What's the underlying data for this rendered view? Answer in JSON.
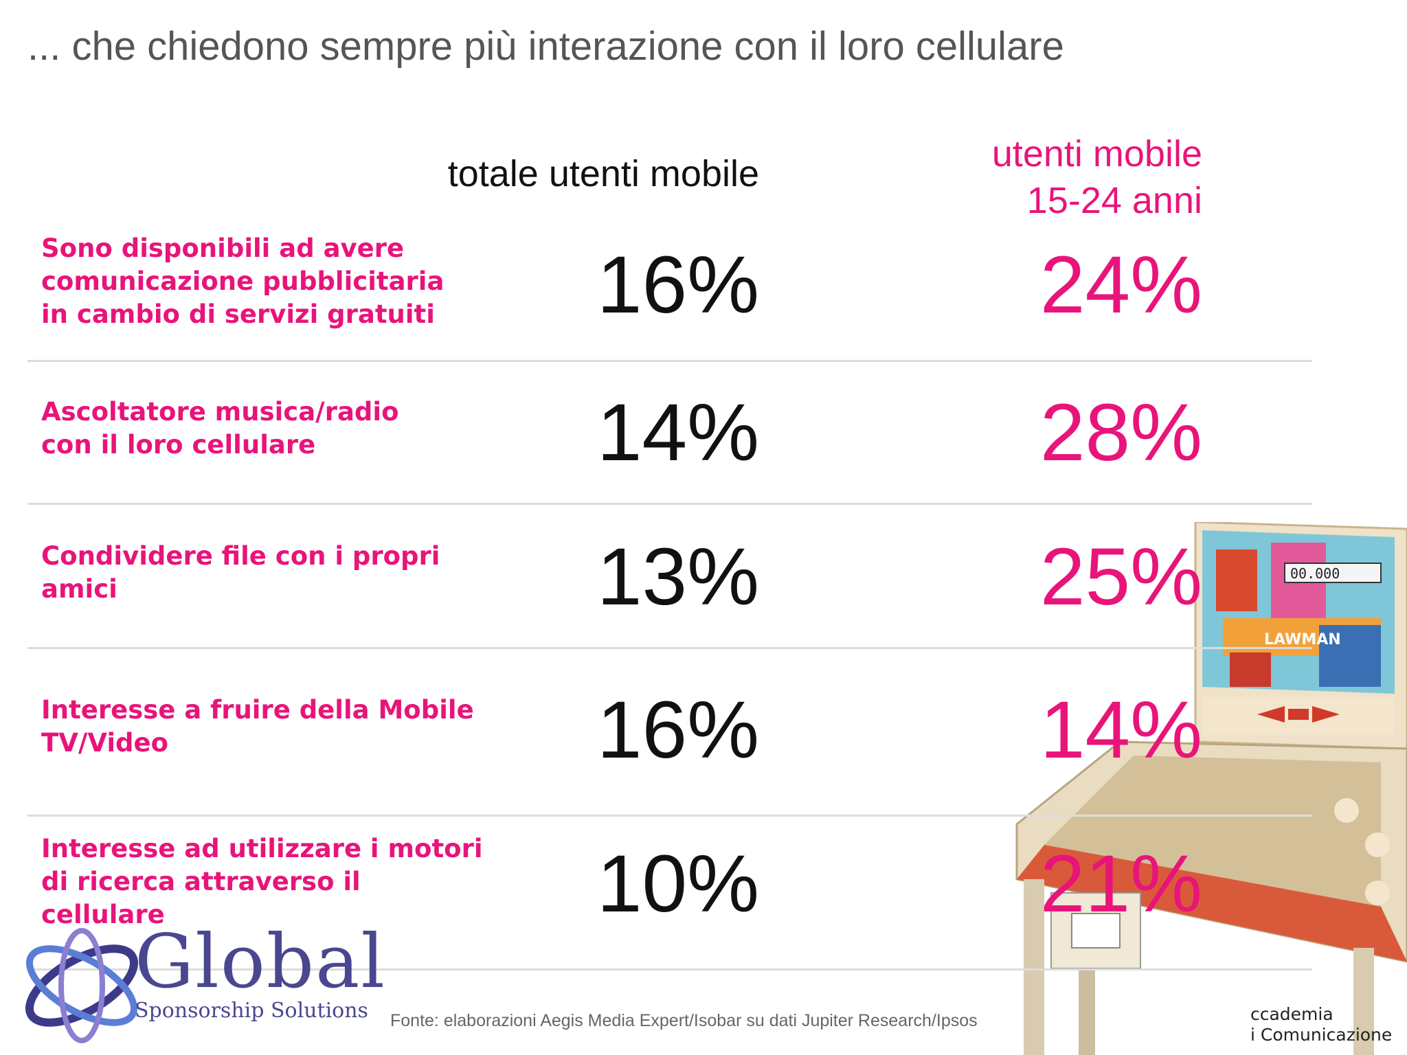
{
  "title": "... che chiedono sempre più interazione con il loro cellulare",
  "columns": {
    "total": "totale utenti mobile",
    "young": [
      "utenti mobile",
      "15-24 anni"
    ]
  },
  "rows": [
    {
      "label": [
        "Sono disponibili ad avere",
        "comunicazione pubblicitaria",
        "in cambio di servizi gratuiti"
      ],
      "total": "16%",
      "young": "24%"
    },
    {
      "label": [
        "Ascoltatore musica/radio",
        "con il loro cellulare"
      ],
      "total": "14%",
      "young": "28%"
    },
    {
      "label": [
        "Condividere file con i propri",
        "amici"
      ],
      "total": "13%",
      "young": "25%"
    },
    {
      "label": [
        "Interesse a fruire della Mobile",
        "TV/Video"
      ],
      "total": "16%",
      "young": "14%"
    },
    {
      "label": [
        "Interesse ad utilizzare i motori",
        "di ricerca attraverso il",
        "cellulare"
      ],
      "total": "10%",
      "young": "21%"
    }
  ],
  "source": "Fonte: elaborazioni Aegis Media Expert/Isobar su dati Jupiter Research/Ipsos",
  "logo": {
    "word": "Global",
    "tagline": "Sponsorship Solutions"
  },
  "accademia": [
    "ccademia",
    "i Comunicazione"
  ],
  "pinball": {
    "score": "00.000",
    "name": "LAWMAN"
  },
  "colors": {
    "accent": "#e8147a",
    "logo": "#4a4790",
    "text": "#111111"
  }
}
